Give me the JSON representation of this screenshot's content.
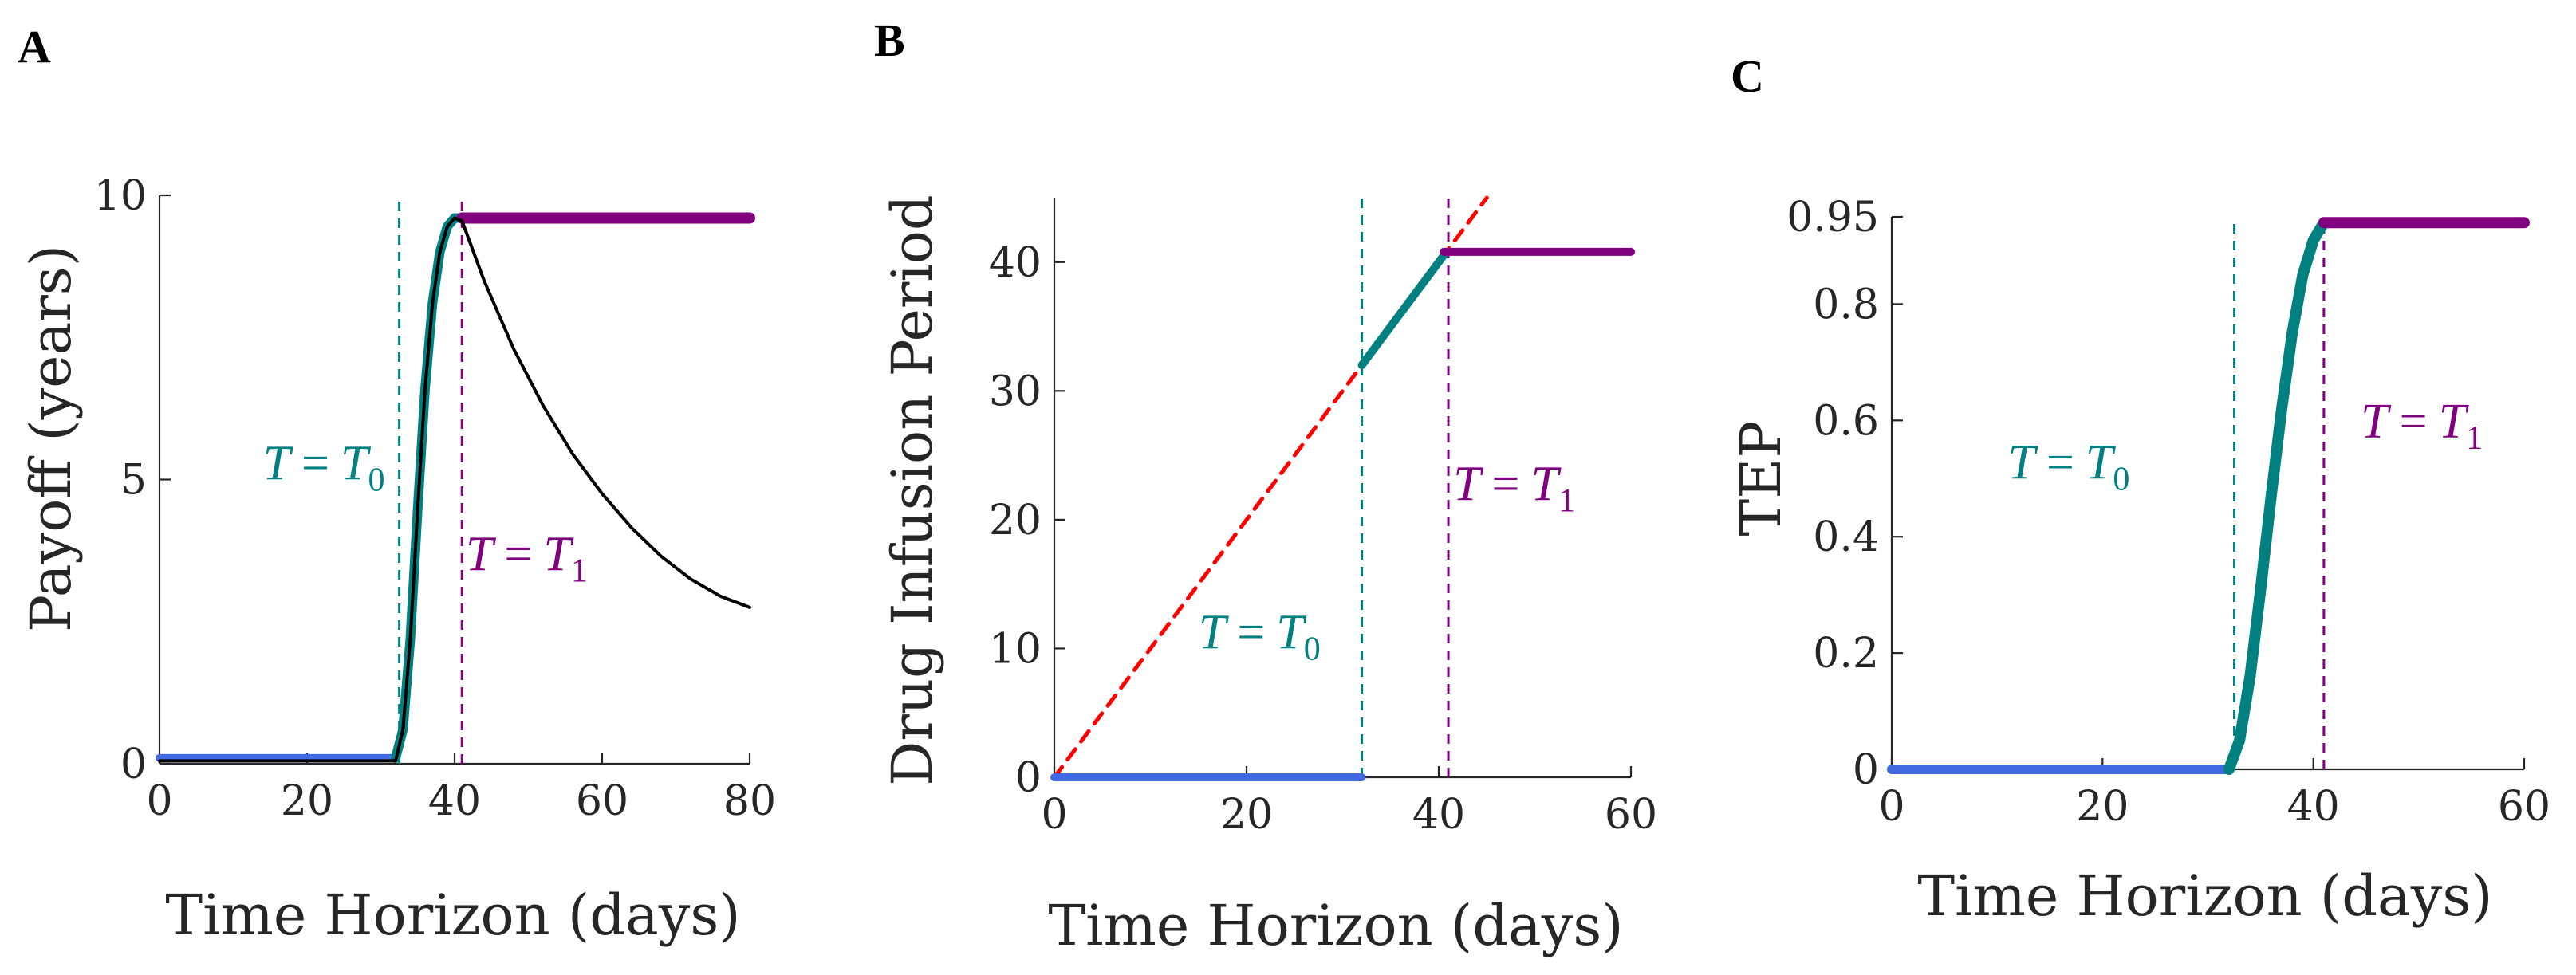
{
  "colors": {
    "blue": "#4169e1",
    "teal": "#008080",
    "purple": "#800080",
    "black": "#000000",
    "red": "#ff0000",
    "axis": "#262626"
  },
  "chart_data": [
    {
      "type": "line",
      "panel": "A",
      "xlabel": "Time Horizon (days)",
      "ylabel": "Payoff (years)",
      "xlim": [
        0,
        80
      ],
      "ylim": [
        0,
        10
      ],
      "xticks": [
        0,
        20,
        40,
        60,
        80
      ],
      "yticks": [
        0,
        5,
        10
      ],
      "xtick_labels": [
        "0",
        "20",
        "40",
        "60",
        "80"
      ],
      "ytick_labels": [
        "0",
        "5",
        "10"
      ],
      "vlines": [
        {
          "x": 32.5,
          "color": "teal",
          "label": {
            "lhs": "T",
            "eq": "=",
            "rhs": "T",
            "sub": "0"
          },
          "label_pos": [
            14,
            5.0
          ]
        },
        {
          "x": 41,
          "color": "purple",
          "label": {
            "lhs": "T",
            "eq": "=",
            "rhs": "T",
            "sub": "1"
          },
          "label_pos": [
            41.5,
            3.4
          ]
        }
      ],
      "series": [
        {
          "name": "payoff-blue",
          "color": "blue",
          "width": 10,
          "points": [
            [
              0,
              0.1
            ],
            [
              32,
              0.1
            ]
          ]
        },
        {
          "name": "payoff-teal",
          "color": "teal",
          "width": 12,
          "points": [
            [
              32,
              0.1
            ],
            [
              33,
              0.6
            ],
            [
              34,
              2.2
            ],
            [
              35,
              4.5
            ],
            [
              36,
              6.6
            ],
            [
              37,
              8.1
            ],
            [
              38,
              9.0
            ],
            [
              39,
              9.45
            ],
            [
              40,
              9.6
            ],
            [
              41,
              9.6
            ]
          ]
        },
        {
          "name": "payoff-purple",
          "color": "purple",
          "width": 14,
          "points": [
            [
              41,
              9.6
            ],
            [
              80,
              9.6
            ]
          ]
        },
        {
          "name": "payoff-black",
          "color": "black",
          "width": 4,
          "points": [
            [
              0,
              0.05
            ],
            [
              32,
              0.05
            ],
            [
              33,
              0.6
            ],
            [
              34,
              2.2
            ],
            [
              35,
              4.5
            ],
            [
              36,
              6.6
            ],
            [
              37,
              8.1
            ],
            [
              38,
              9.0
            ],
            [
              39,
              9.45
            ],
            [
              40,
              9.6
            ],
            [
              41,
              9.55
            ],
            [
              44,
              8.5
            ],
            [
              48,
              7.3
            ],
            [
              52,
              6.3
            ],
            [
              56,
              5.45
            ],
            [
              60,
              4.75
            ],
            [
              64,
              4.15
            ],
            [
              68,
              3.65
            ],
            [
              72,
              3.25
            ],
            [
              76,
              2.95
            ],
            [
              80,
              2.75
            ]
          ]
        }
      ]
    },
    {
      "type": "line",
      "panel": "B",
      "xlabel": "Time Horizon (days)",
      "ylabel": "Drug Infusion Period",
      "xlim": [
        0,
        60
      ],
      "ylim": [
        0,
        45
      ],
      "xticks": [
        0,
        20,
        40,
        60
      ],
      "yticks": [
        0,
        10,
        20,
        30,
        40
      ],
      "xtick_labels": [
        "0",
        "20",
        "40",
        "60"
      ],
      "ytick_labels": [
        "0",
        "10",
        "20",
        "30",
        "40"
      ],
      "vlines": [
        {
          "x": 32,
          "color": "teal",
          "label": {
            "lhs": "T",
            "eq": "=",
            "rhs": "T",
            "sub": "0"
          },
          "label_pos": [
            15,
            10
          ]
        },
        {
          "x": 41,
          "color": "purple",
          "label": {
            "lhs": "T",
            "eq": "=",
            "rhs": "T",
            "sub": "1"
          },
          "label_pos": [
            41.5,
            21.5
          ]
        }
      ],
      "series": [
        {
          "name": "red-diagonal",
          "color": "red",
          "width": 5,
          "dash": "16 12",
          "points": [
            [
              0,
              0
            ],
            [
              45,
              45
            ]
          ]
        },
        {
          "name": "infusion-blue",
          "color": "blue",
          "width": 10,
          "points": [
            [
              0,
              0
            ],
            [
              32,
              0
            ]
          ]
        },
        {
          "name": "infusion-teal",
          "color": "teal",
          "width": 10,
          "points": [
            [
              32,
              32
            ],
            [
              40.5,
              40.5
            ]
          ]
        },
        {
          "name": "infusion-purple",
          "color": "purple",
          "width": 10,
          "points": [
            [
              40.5,
              40.8
            ],
            [
              60,
              40.8
            ]
          ]
        }
      ]
    },
    {
      "type": "line",
      "panel": "C",
      "xlabel": "Time Horizon (days)",
      "ylabel": "TEP",
      "xlim": [
        0,
        60
      ],
      "ylim": [
        0,
        0.95
      ],
      "xticks": [
        0,
        20,
        40,
        60
      ],
      "yticks": [
        0,
        0.2,
        0.4,
        0.6,
        0.8,
        0.95
      ],
      "xtick_labels": [
        "0",
        "20",
        "40",
        "60"
      ],
      "ytick_labels": [
        "0",
        "0.2",
        "0.4",
        "0.6",
        "0.8",
        "0.95"
      ],
      "vlines": [
        {
          "x": 32.5,
          "color": "teal",
          "label": {
            "lhs": "T",
            "eq": "=",
            "rhs": "T",
            "sub": "0"
          },
          "label_pos": [
            11,
            0.5
          ]
        },
        {
          "x": 41,
          "color": "purple",
          "label": {
            "lhs": "T",
            "eq": "=",
            "rhs": "T",
            "sub": "1"
          },
          "label_pos": [
            44.5,
            0.57
          ]
        }
      ],
      "series": [
        {
          "name": "tep-blue",
          "color": "blue",
          "width": 12,
          "points": [
            [
              0,
              0
            ],
            [
              32,
              0
            ]
          ]
        },
        {
          "name": "tep-teal",
          "color": "teal",
          "width": 14,
          "points": [
            [
              32,
              0
            ],
            [
              33,
              0.05
            ],
            [
              34,
              0.16
            ],
            [
              35,
              0.31
            ],
            [
              36,
              0.47
            ],
            [
              37,
              0.62
            ],
            [
              38,
              0.75
            ],
            [
              39,
              0.85
            ],
            [
              40,
              0.91
            ],
            [
              41,
              0.94
            ]
          ]
        },
        {
          "name": "tep-purple",
          "color": "purple",
          "width": 14,
          "points": [
            [
              41,
              0.94
            ],
            [
              60,
              0.94
            ]
          ]
        }
      ]
    }
  ],
  "panels": {
    "A": {
      "label": "A",
      "xlabel": "Time Horizon (days)",
      "ylabel": "Payoff (years)"
    },
    "B": {
      "label": "B",
      "xlabel": "Time Horizon (days)",
      "ylabel": "Drug Infusion Period"
    },
    "C": {
      "label": "C",
      "xlabel": "Time Horizon (days)",
      "ylabel": "TEP"
    }
  }
}
